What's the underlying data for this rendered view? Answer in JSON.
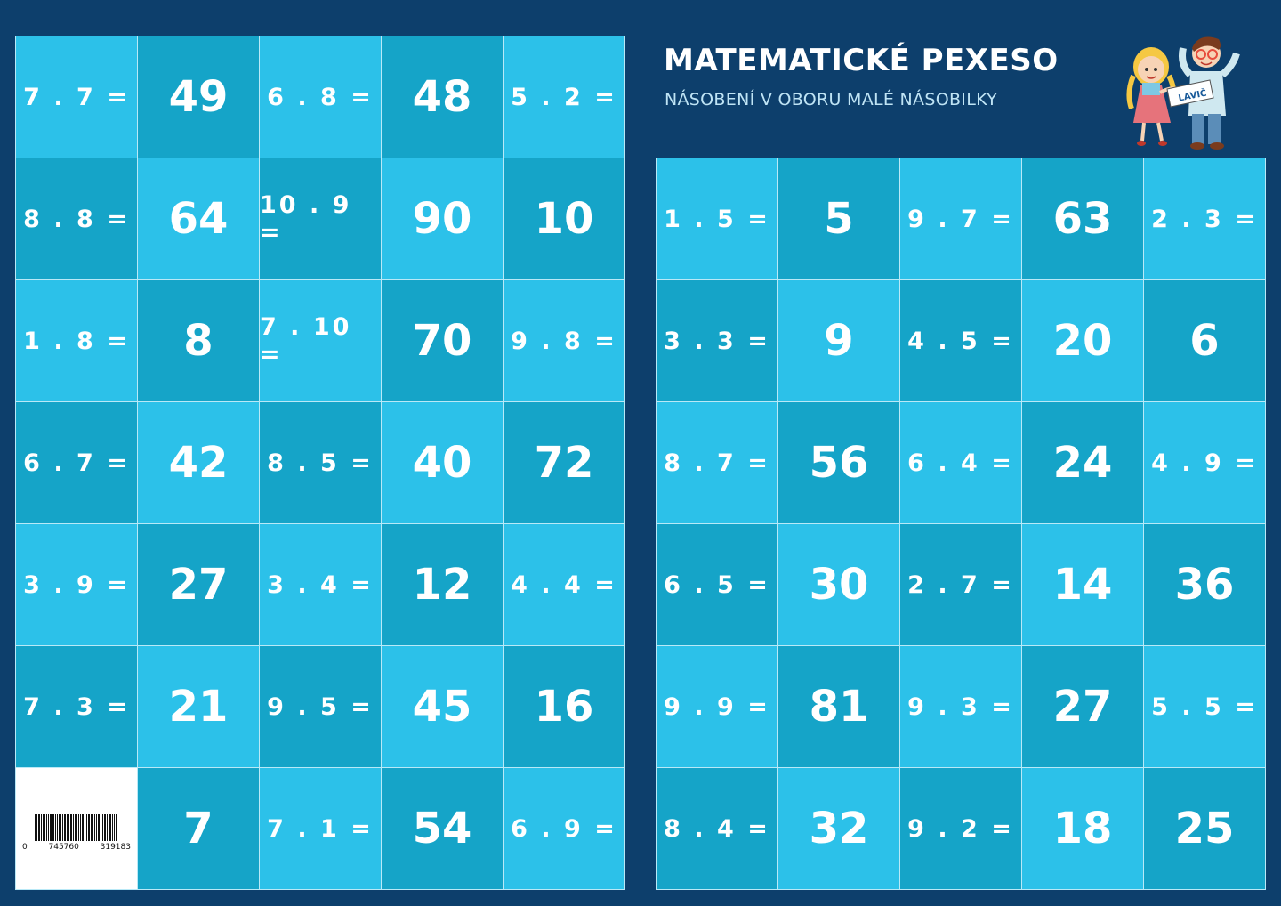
{
  "header": {
    "title": "MATEMATICKÉ PEXESO",
    "subtitle": "NÁSOBENÍ V OBORU MALÉ NÁSOBILKY",
    "mascot_label": "LAVIČ"
  },
  "colors": {
    "background": "#0d3f6c",
    "card_light": "#2cc1e9",
    "card_dark": "#15a4c8",
    "grid_line": "#b9e9f7",
    "text": "#ffffff"
  },
  "barcode": {
    "left_digit": "0",
    "middle_digits": "745760",
    "right_digits": "319183"
  },
  "left_grid": [
    [
      {
        "t": "7 . 7 =",
        "k": "eq"
      },
      {
        "t": "49",
        "k": "num"
      },
      {
        "t": "6 . 8 =",
        "k": "eq"
      },
      {
        "t": "48",
        "k": "num"
      },
      {
        "t": "5 . 2 =",
        "k": "eq"
      }
    ],
    [
      {
        "t": "8 . 8 =",
        "k": "eq"
      },
      {
        "t": "64",
        "k": "num"
      },
      {
        "t": "10 . 9 =",
        "k": "eq"
      },
      {
        "t": "90",
        "k": "num"
      },
      {
        "t": "10",
        "k": "num"
      }
    ],
    [
      {
        "t": "1 . 8 =",
        "k": "eq"
      },
      {
        "t": "8",
        "k": "num"
      },
      {
        "t": "7 . 10 =",
        "k": "eq"
      },
      {
        "t": "70",
        "k": "num"
      },
      {
        "t": "9 . 8 =",
        "k": "eq"
      }
    ],
    [
      {
        "t": "6 . 7 =",
        "k": "eq"
      },
      {
        "t": "42",
        "k": "num"
      },
      {
        "t": "8 . 5 =",
        "k": "eq"
      },
      {
        "t": "40",
        "k": "num"
      },
      {
        "t": "72",
        "k": "num"
      }
    ],
    [
      {
        "t": "3 . 9 =",
        "k": "eq"
      },
      {
        "t": "27",
        "k": "num"
      },
      {
        "t": "3 . 4 =",
        "k": "eq"
      },
      {
        "t": "12",
        "k": "num"
      },
      {
        "t": "4 . 4 =",
        "k": "eq"
      }
    ],
    [
      {
        "t": "7 . 3 =",
        "k": "eq"
      },
      {
        "t": "21",
        "k": "num"
      },
      {
        "t": "9 . 5 =",
        "k": "eq"
      },
      {
        "t": "45",
        "k": "num"
      },
      {
        "t": "16",
        "k": "num"
      }
    ],
    [
      {
        "t": "",
        "k": "barcode"
      },
      {
        "t": "7",
        "k": "num"
      },
      {
        "t": "7 . 1 =",
        "k": "eq"
      },
      {
        "t": "54",
        "k": "num"
      },
      {
        "t": "6 . 9 =",
        "k": "eq"
      }
    ]
  ],
  "right_grid": [
    [
      {
        "t": "1 . 5 =",
        "k": "eq"
      },
      {
        "t": "5",
        "k": "num"
      },
      {
        "t": "9 . 7 =",
        "k": "eq"
      },
      {
        "t": "63",
        "k": "num"
      },
      {
        "t": "2 . 3 =",
        "k": "eq"
      }
    ],
    [
      {
        "t": "3 . 3 =",
        "k": "eq"
      },
      {
        "t": "9",
        "k": "num"
      },
      {
        "t": "4 . 5 =",
        "k": "eq"
      },
      {
        "t": "20",
        "k": "num"
      },
      {
        "t": "6",
        "k": "num"
      }
    ],
    [
      {
        "t": "8 . 7 =",
        "k": "eq"
      },
      {
        "t": "56",
        "k": "num"
      },
      {
        "t": "6 . 4 =",
        "k": "eq"
      },
      {
        "t": "24",
        "k": "num"
      },
      {
        "t": "4 . 9 =",
        "k": "eq"
      }
    ],
    [
      {
        "t": "6 . 5 =",
        "k": "eq"
      },
      {
        "t": "30",
        "k": "num"
      },
      {
        "t": "2 . 7 =",
        "k": "eq"
      },
      {
        "t": "14",
        "k": "num"
      },
      {
        "t": "36",
        "k": "num"
      }
    ],
    [
      {
        "t": "9 . 9 =",
        "k": "eq"
      },
      {
        "t": "81",
        "k": "num"
      },
      {
        "t": "9 . 3 =",
        "k": "eq"
      },
      {
        "t": "27",
        "k": "num"
      },
      {
        "t": "5 . 5 =",
        "k": "eq"
      }
    ],
    [
      {
        "t": "8 . 4 =",
        "k": "eq"
      },
      {
        "t": "32",
        "k": "num"
      },
      {
        "t": "9 . 2 =",
        "k": "eq"
      },
      {
        "t": "18",
        "k": "num"
      },
      {
        "t": "25",
        "k": "num"
      }
    ]
  ]
}
